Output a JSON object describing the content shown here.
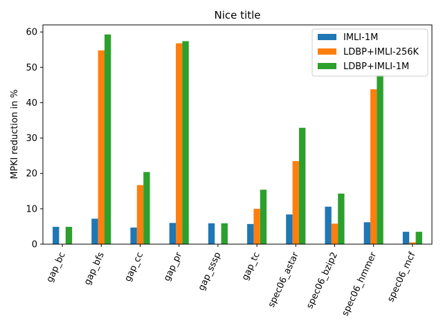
{
  "chart_data": {
    "type": "bar",
    "title": "Nice title",
    "xlabel": "",
    "ylabel": "MPKI reduction in %",
    "ylim": [
      0,
      62
    ],
    "yticks": [
      0,
      10,
      20,
      30,
      40,
      50,
      60
    ],
    "categories": [
      "gap_bc",
      "gap_bfs",
      "gap_cc",
      "gap_pr",
      "gap_sssp",
      "gap_tc",
      "spec06_astar",
      "spec06_bzip2",
      "spec06_hmmer",
      "spec06_mcf"
    ],
    "series": [
      {
        "name": "IMLI-1M",
        "color": "#1f77b4",
        "values": [
          4.9,
          7.2,
          4.7,
          6.0,
          5.9,
          5.7,
          8.4,
          10.6,
          6.2,
          3.5
        ]
      },
      {
        "name": "LDBP+IMLI-256K",
        "color": "#ff7f0e",
        "values": [
          0.0,
          54.8,
          16.7,
          56.8,
          0.0,
          10.0,
          23.5,
          5.8,
          43.8,
          0.5
        ]
      },
      {
        "name": "LDBP+IMLI-1M",
        "color": "#2ca02c",
        "values": [
          4.9,
          59.3,
          20.4,
          57.4,
          5.9,
          15.4,
          32.9,
          14.3,
          47.8,
          3.5
        ]
      }
    ],
    "legend_position": "upper-right",
    "grid": false
  }
}
